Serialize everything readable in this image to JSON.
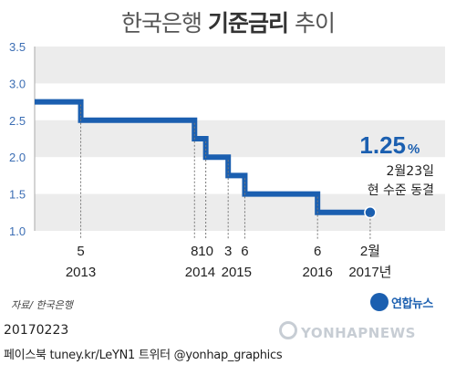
{
  "title": {
    "prefix": "한국은행 ",
    "bold": "기준금리",
    "suffix": " 추이"
  },
  "chart_data": {
    "type": "line",
    "step": true,
    "x": [
      "2013-03",
      "2013-05",
      "2014-08",
      "2014-10",
      "2015-03",
      "2015-06",
      "2016-06",
      "2017-02"
    ],
    "values": [
      2.75,
      2.5,
      2.25,
      2.0,
      1.75,
      1.5,
      1.25,
      1.25
    ],
    "ylim": [
      1.0,
      3.5
    ],
    "yticks": [
      "1.0",
      "1.5",
      "2.0",
      "2.5",
      "3.0",
      "3.5"
    ],
    "xtick_months": [
      "5",
      "8",
      "10",
      "3",
      "6",
      "6",
      "2월"
    ],
    "xtick_years": [
      "2013",
      "2014",
      "2015",
      "2016",
      "2017년"
    ],
    "grid_bands": true,
    "annotation": {
      "value": "1.25",
      "unit": "%",
      "line1": "2월23일",
      "line2": "현 수준 동결"
    }
  },
  "source": "자료/ 한국은행",
  "logo_text": "연합뉴스",
  "date_code": "20170223",
  "footer": "페이스북 tuney.kr/LeYN1 트위터 @yonhap_graphics",
  "watermark": "YONHAPNEWS",
  "colors": {
    "line": "#1b5fb0",
    "band": "#ececec",
    "accent": "#1b5fb0"
  }
}
